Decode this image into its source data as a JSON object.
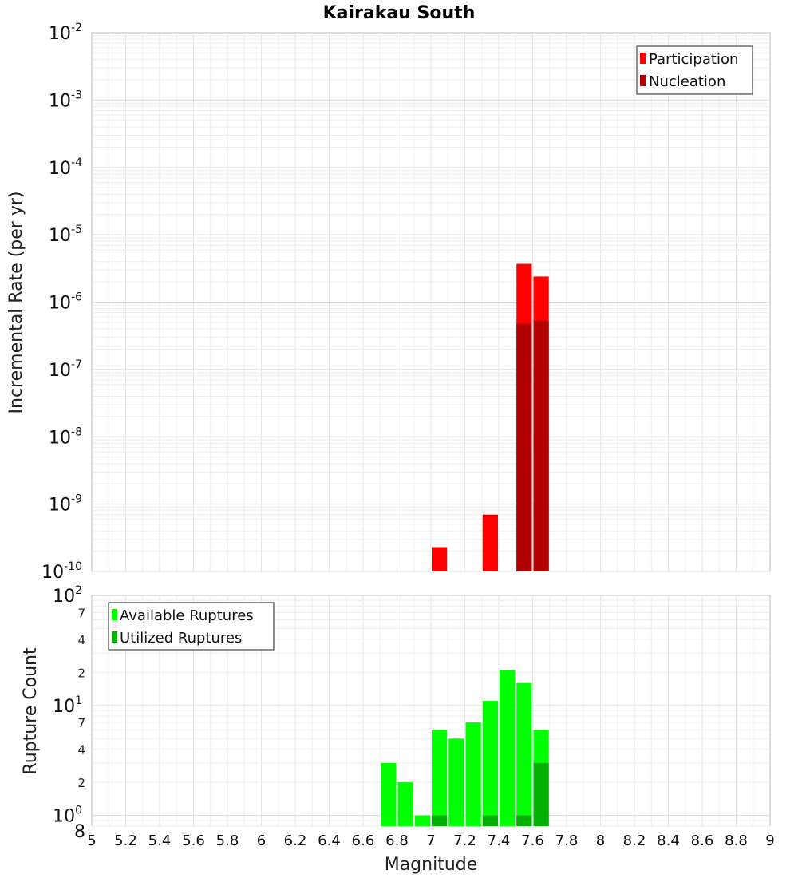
{
  "title": "Kairakau South",
  "chart_data": [
    {
      "type": "bar",
      "ylabel": "Incremental Rate (per yr)",
      "yscale": "log",
      "ylim": [
        1e-10,
        0.01
      ],
      "xlim": [
        5,
        9
      ],
      "grid": true,
      "legend_position": "top-right",
      "colors": {
        "Participation": "#ff0000",
        "Nucleation": "#b20000"
      },
      "series": [
        {
          "name": "Participation",
          "x": [
            7.05,
            7.35,
            7.55,
            7.65
          ],
          "values": [
            2.3e-10,
            7e-10,
            3.7e-06,
            2.4e-06
          ]
        },
        {
          "name": "Nucleation",
          "x": [
            7.55,
            7.65
          ],
          "values": [
            4.8e-07,
            5.3e-07
          ]
        }
      ]
    },
    {
      "type": "bar",
      "xlabel": "Magnitude",
      "ylabel": "Rupture Count",
      "yscale": "log",
      "ylim": [
        0.8,
        100
      ],
      "xlim": [
        5,
        9
      ],
      "grid": true,
      "legend_position": "top-left",
      "colors": {
        "Available Ruptures": "#00ff00",
        "Utilized Ruptures": "#00b000"
      },
      "xticks": [
        "5",
        "5.2",
        "5.4",
        "5.6",
        "5.8",
        "6",
        "6.2",
        "6.4",
        "6.6",
        "6.8",
        "7",
        "7.2",
        "7.4",
        "7.6",
        "7.8",
        "8",
        "8.2",
        "8.4",
        "8.6",
        "8.8",
        "9"
      ],
      "series": [
        {
          "name": "Available Ruptures",
          "x": [
            6.75,
            6.85,
            6.95,
            7.05,
            7.15,
            7.25,
            7.35,
            7.45,
            7.55,
            7.65
          ],
          "values": [
            3,
            2,
            1,
            6,
            5,
            7,
            11,
            21,
            16,
            6
          ]
        },
        {
          "name": "Utilized Ruptures",
          "x": [
            7.05,
            7.35,
            7.55,
            7.65
          ],
          "values": [
            1,
            1,
            1,
            3
          ]
        }
      ]
    }
  ],
  "top_axis": {
    "decades": [
      {
        "base": "10",
        "exp": "-2"
      },
      {
        "base": "10",
        "exp": "-3"
      },
      {
        "base": "10",
        "exp": "-4"
      },
      {
        "base": "10",
        "exp": "-5"
      },
      {
        "base": "10",
        "exp": "-6"
      },
      {
        "base": "10",
        "exp": "-7"
      },
      {
        "base": "10",
        "exp": "-8"
      },
      {
        "base": "10",
        "exp": "-9"
      },
      {
        "base": "10",
        "exp": "-10"
      }
    ]
  },
  "bottom_axis": {
    "decades": [
      {
        "base": "10",
        "exp": "2"
      },
      {
        "base": "10",
        "exp": "1"
      },
      {
        "base": "10",
        "exp": "0"
      }
    ],
    "minor_labels": [
      "7",
      "4",
      "2",
      "7",
      "4",
      "2",
      "8"
    ]
  }
}
